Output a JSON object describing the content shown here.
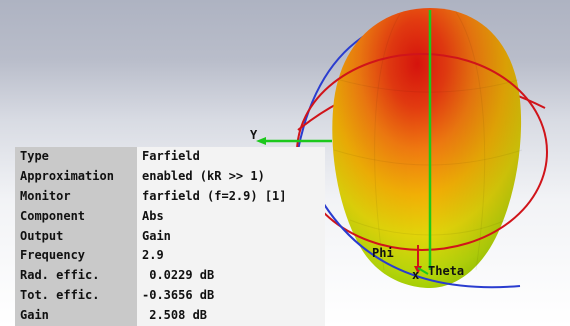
{
  "properties": {
    "rows": [
      {
        "key": "Type",
        "value": "Farfield"
      },
      {
        "key": "Approximation",
        "value": "enabled (kR >> 1)"
      },
      {
        "key": "Monitor",
        "value": "farfield (f=2.9) [1]"
      },
      {
        "key": "Component",
        "value": "Abs"
      },
      {
        "key": "Output",
        "value": "Gain"
      },
      {
        "key": "Frequency",
        "value": "2.9"
      },
      {
        "key": "Rad. effic.",
        "value": " 0.0229 dB"
      },
      {
        "key": "Tot. effic.",
        "value": "-0.3656 dB"
      },
      {
        "key": "Gain",
        "value": " 2.508 dB"
      }
    ]
  },
  "axes": {
    "y_label": "Y",
    "phi_label": "Phi",
    "x_label": "x",
    "theta_label": "Theta"
  },
  "colors": {
    "pattern_peak": "#e21a10",
    "pattern_mid": "#f0a000",
    "pattern_low": "#9ac900",
    "phi_circle": "#d0141a",
    "theta_circle": "#2a3ccf",
    "axis_green": "#1cc81c"
  }
}
